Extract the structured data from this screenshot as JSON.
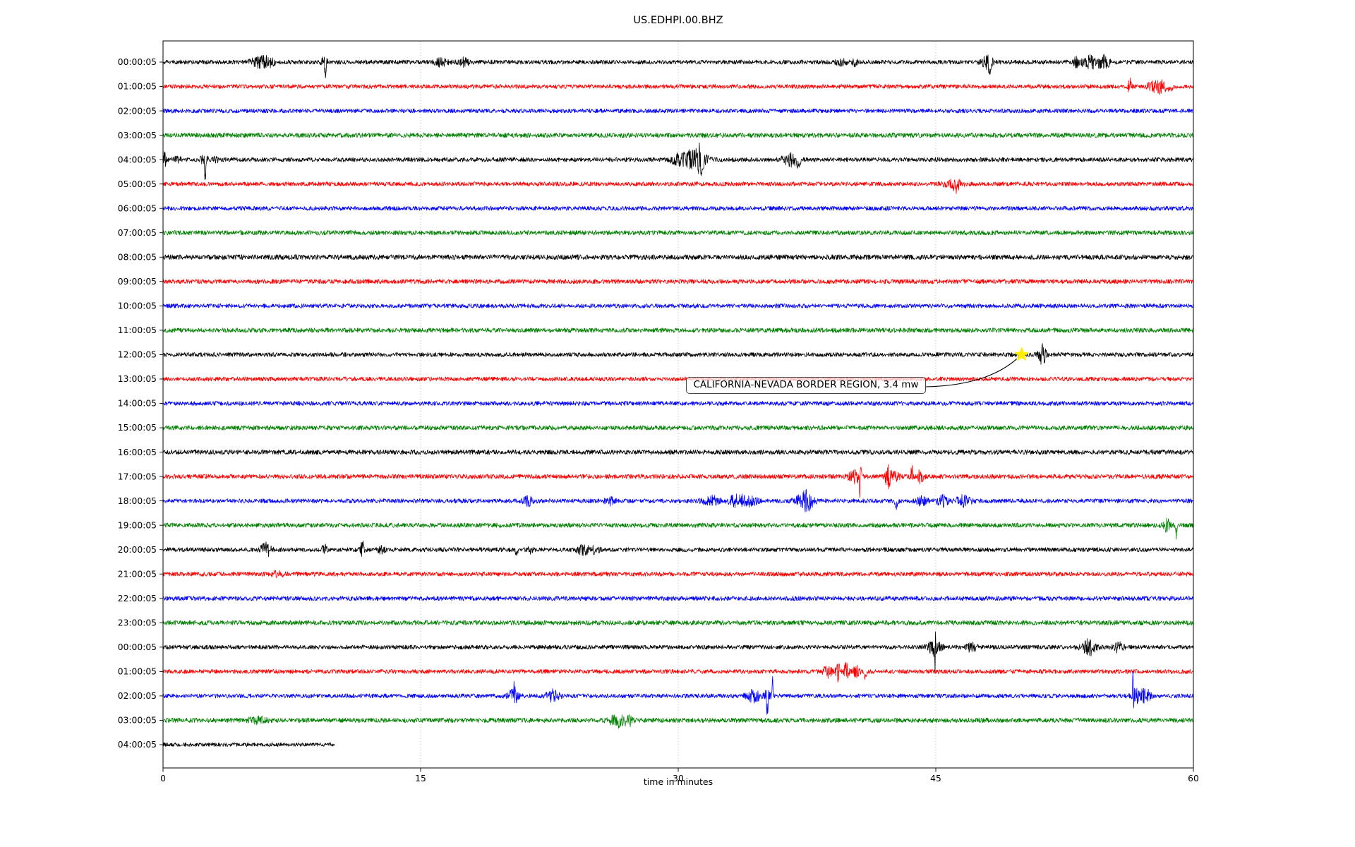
{
  "page": {
    "background": "#ffffff"
  },
  "chart_data": {
    "type": "line",
    "subtype": "helicorder-seismogram",
    "title": "US.EDHPI.00.BHZ",
    "xlabel": "time in minutes",
    "x_range": [
      0,
      60
    ],
    "x_ticks": [
      0,
      15,
      30,
      45,
      60
    ],
    "grid_minutes": [
      15,
      30,
      45
    ],
    "grid_color": "#b0b0b0",
    "trace_color_cycle": [
      "#000000",
      "#ff0000",
      "#0000ff",
      "#008000"
    ],
    "annotation": {
      "text": "CALIFORNIA-NEVADA BORDER REGION, 3.4 mw",
      "star_row_index": 12,
      "star_row_label": "12:00:05",
      "star_minute": 50.0,
      "star_color": "#ffee00"
    },
    "rows": [
      {
        "label": "00:00:05",
        "color": "#000000",
        "amp": 3.0,
        "events": [
          {
            "m": 5.6,
            "a": 7,
            "w": 0.5
          },
          {
            "m": 6.2,
            "a": 5,
            "w": 0.3
          },
          {
            "m": 9.4,
            "a": 8,
            "w": 0.15
          },
          {
            "m": 9.45,
            "a": 42,
            "w": 0.04,
            "dir": -1
          },
          {
            "m": 16.2,
            "a": 5,
            "w": 0.4
          },
          {
            "m": 17.5,
            "a": 5,
            "w": 0.3
          },
          {
            "m": 39.5,
            "a": 4,
            "w": 0.3
          },
          {
            "m": 40.3,
            "a": 5,
            "w": 0.15
          },
          {
            "m": 48.0,
            "a": 10,
            "w": 0.3
          },
          {
            "m": 48.15,
            "a": 14,
            "w": 0.08,
            "dir": -1
          },
          {
            "m": 53.2,
            "a": 8,
            "w": 0.15
          },
          {
            "m": 54.0,
            "a": 8,
            "w": 0.5
          },
          {
            "m": 54.8,
            "a": 9,
            "w": 0.3
          }
        ]
      },
      {
        "label": "01:00:05",
        "color": "#ff0000",
        "amp": 3.0,
        "events": [
          {
            "m": 56.3,
            "a": 15,
            "w": 0.09
          },
          {
            "m": 57.6,
            "a": 6,
            "w": 0.3
          },
          {
            "m": 58.1,
            "a": 9,
            "w": 0.25
          },
          {
            "m": 58.6,
            "a": 5,
            "w": 0.3,
            "dir": -1
          }
        ]
      },
      {
        "label": "02:00:05",
        "color": "#0000ff",
        "amp": 3.0,
        "events": []
      },
      {
        "label": "03:00:05",
        "color": "#008000",
        "amp": 3.3,
        "events": []
      },
      {
        "label": "04:00:05",
        "color": "#000000",
        "amp": 3.0,
        "events": [
          {
            "m": 0.1,
            "a": 10,
            "w": 0.1
          },
          {
            "m": 0.8,
            "a": 5,
            "w": 0.2
          },
          {
            "m": 2.4,
            "a": 6,
            "w": 0.2
          },
          {
            "m": 2.45,
            "a": 62,
            "w": 0.035,
            "dir": -1
          },
          {
            "m": 3.1,
            "a": 5,
            "w": 0.15
          },
          {
            "m": 29.9,
            "a": 5,
            "w": 0.3
          },
          {
            "m": 30.8,
            "a": 12,
            "w": 0.8
          },
          {
            "m": 31.3,
            "a": 14,
            "w": 0.2
          },
          {
            "m": 36.5,
            "a": 9,
            "w": 0.4
          },
          {
            "m": 37.0,
            "a": 12,
            "w": 0.15,
            "dir": -1
          }
        ]
      },
      {
        "label": "05:00:05",
        "color": "#ff0000",
        "amp": 3.0,
        "events": [
          {
            "m": 46.0,
            "a": 5,
            "w": 0.5
          },
          {
            "m": 46.2,
            "a": 7,
            "w": 0.15
          }
        ]
      },
      {
        "label": "06:00:05",
        "color": "#0000ff",
        "amp": 3.0,
        "events": []
      },
      {
        "label": "07:00:05",
        "color": "#008000",
        "amp": 3.2,
        "events": []
      },
      {
        "label": "08:00:05",
        "color": "#000000",
        "amp": 3.5,
        "events": []
      },
      {
        "label": "09:00:05",
        "color": "#ff0000",
        "amp": 3.2,
        "events": []
      },
      {
        "label": "10:00:05",
        "color": "#0000ff",
        "amp": 3.0,
        "events": []
      },
      {
        "label": "11:00:05",
        "color": "#008000",
        "amp": 3.2,
        "events": []
      },
      {
        "label": "12:00:05",
        "color": "#000000",
        "amp": 3.0,
        "events": [
          {
            "m": 51.2,
            "a": 13,
            "w": 0.22
          }
        ]
      },
      {
        "label": "13:00:05",
        "color": "#ff0000",
        "amp": 3.0,
        "events": []
      },
      {
        "label": "14:00:05",
        "color": "#0000ff",
        "amp": 3.0,
        "events": []
      },
      {
        "label": "15:00:05",
        "color": "#008000",
        "amp": 3.2,
        "events": []
      },
      {
        "label": "16:00:05",
        "color": "#000000",
        "amp": 3.3,
        "events": []
      },
      {
        "label": "17:00:05",
        "color": "#ff0000",
        "amp": 3.2,
        "events": [
          {
            "m": 40.3,
            "a": 8,
            "w": 0.4
          },
          {
            "m": 40.6,
            "a": 36,
            "w": 0.05
          },
          {
            "m": 42.2,
            "a": 12,
            "w": 0.15
          },
          {
            "m": 42.5,
            "a": 6,
            "w": 0.4
          },
          {
            "m": 43.6,
            "a": 14,
            "w": 0.1
          },
          {
            "m": 44.1,
            "a": 8,
            "w": 0.2
          }
        ]
      },
      {
        "label": "18:00:05",
        "color": "#0000ff",
        "amp": 3.0,
        "events": [
          {
            "m": 21.3,
            "a": 6,
            "w": 0.3
          },
          {
            "m": 26.0,
            "a": 5,
            "w": 0.3
          },
          {
            "m": 31.9,
            "a": 6,
            "w": 0.5
          },
          {
            "m": 33.5,
            "a": 8,
            "w": 0.6
          },
          {
            "m": 34.3,
            "a": 6,
            "w": 0.3
          },
          {
            "m": 37.3,
            "a": 9,
            "w": 0.5
          },
          {
            "m": 37.6,
            "a": 7,
            "w": 0.3
          },
          {
            "m": 42.7,
            "a": 12,
            "w": 0.1,
            "dir": -1
          },
          {
            "m": 44.2,
            "a": 6,
            "w": 0.3
          },
          {
            "m": 45.4,
            "a": 8,
            "w": 0.3
          },
          {
            "m": 46.6,
            "a": 8,
            "w": 0.4
          }
        ]
      },
      {
        "label": "19:00:05",
        "color": "#008000",
        "amp": 3.2,
        "events": [
          {
            "m": 58.4,
            "a": 10,
            "w": 0.2
          },
          {
            "m": 59.0,
            "a": 20,
            "w": 0.05,
            "dir": -1
          }
        ]
      },
      {
        "label": "20:00:05",
        "color": "#000000",
        "amp": 3.0,
        "events": [
          {
            "m": 6.0,
            "a": 9,
            "w": 0.3
          },
          {
            "m": 9.4,
            "a": 7,
            "w": 0.15
          },
          {
            "m": 11.6,
            "a": 12,
            "w": 0.1
          },
          {
            "m": 12.7,
            "a": 5,
            "w": 0.2
          },
          {
            "m": 20.6,
            "a": 8,
            "w": 0.1,
            "dir": -1
          },
          {
            "m": 21.4,
            "a": 6,
            "w": 0.15
          },
          {
            "m": 24.5,
            "a": 6,
            "w": 0.4
          },
          {
            "m": 25.2,
            "a": 5,
            "w": 0.2
          }
        ]
      },
      {
        "label": "21:00:05",
        "color": "#ff0000",
        "amp": 3.1,
        "events": [
          {
            "m": 6.7,
            "a": 4,
            "w": 0.3
          }
        ]
      },
      {
        "label": "22:00:05",
        "color": "#0000ff",
        "amp": 3.1,
        "events": []
      },
      {
        "label": "23:00:05",
        "color": "#008000",
        "amp": 3.3,
        "events": []
      },
      {
        "label": "00:00:05",
        "color": "#000000",
        "amp": 3.0,
        "events": [
          {
            "m": 44.9,
            "a": 10,
            "w": 0.4
          },
          {
            "m": 44.95,
            "a": 27,
            "w": 0.05
          },
          {
            "m": 47.1,
            "a": 6,
            "w": 0.3
          },
          {
            "m": 53.9,
            "a": 10,
            "w": 0.4
          },
          {
            "m": 54.1,
            "a": 16,
            "w": 0.08,
            "dir": -1
          },
          {
            "m": 55.6,
            "a": 6,
            "w": 0.3
          }
        ]
      },
      {
        "label": "01:00:05",
        "color": "#ff0000",
        "amp": 3.0,
        "events": [
          {
            "m": 38.7,
            "a": 8,
            "w": 0.25
          },
          {
            "m": 39.3,
            "a": 15,
            "w": 0.12
          },
          {
            "m": 39.8,
            "a": 12,
            "w": 0.15
          },
          {
            "m": 40.4,
            "a": 8,
            "w": 0.2
          },
          {
            "m": 40.9,
            "a": 12,
            "w": 0.1,
            "dir": -1
          }
        ]
      },
      {
        "label": "02:00:05",
        "color": "#0000ff",
        "amp": 3.0,
        "events": [
          {
            "m": 20.4,
            "a": 8,
            "w": 0.3
          },
          {
            "m": 20.5,
            "a": 22,
            "w": 0.07
          },
          {
            "m": 22.7,
            "a": 8,
            "w": 0.35
          },
          {
            "m": 34.4,
            "a": 8,
            "w": 0.4
          },
          {
            "m": 35.2,
            "a": 10,
            "w": 0.15
          },
          {
            "m": 35.2,
            "a": 55,
            "w": 0.04,
            "dir": -1
          },
          {
            "m": 35.5,
            "a": 32,
            "w": 0.04,
            "dir": 1
          },
          {
            "m": 56.5,
            "a": 34,
            "w": 0.06
          },
          {
            "m": 56.8,
            "a": 9,
            "w": 0.4
          },
          {
            "m": 57.3,
            "a": 7,
            "w": 0.2
          }
        ]
      },
      {
        "label": "03:00:05",
        "color": "#008000",
        "amp": 3.2,
        "events": [
          {
            "m": 5.5,
            "a": 4,
            "w": 0.5
          },
          {
            "m": 26.2,
            "a": 5,
            "w": 0.4
          },
          {
            "m": 26.55,
            "a": 15,
            "w": 0.07,
            "dir": -1
          },
          {
            "m": 26.75,
            "a": 8,
            "w": 0.15
          },
          {
            "m": 26.9,
            "a": 12,
            "w": 0.07,
            "dir": -1
          },
          {
            "m": 27.2,
            "a": 6,
            "w": 0.2
          }
        ]
      },
      {
        "label": "04:00:05",
        "color": "#000000",
        "amp": 2.7,
        "end_min": 10.0,
        "events": []
      }
    ]
  }
}
